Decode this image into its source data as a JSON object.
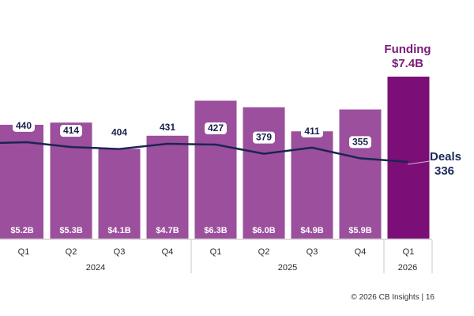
{
  "chart_data": {
    "type": "bar",
    "categories": [
      "Q1",
      "Q2",
      "Q3",
      "Q4",
      "Q1",
      "Q2",
      "Q3",
      "Q4",
      "Q1"
    ],
    "years": [
      {
        "label": "2024",
        "quarters": [
          0,
          1,
          2,
          3
        ]
      },
      {
        "label": "2025",
        "quarters": [
          4,
          5,
          6,
          7
        ]
      },
      {
        "label": "2026",
        "quarters": [
          8
        ]
      }
    ],
    "series": [
      {
        "name": "Funding",
        "unit": "$B",
        "values": [
          5.2,
          5.3,
          4.1,
          4.7,
          6.3,
          6.0,
          4.9,
          5.9,
          7.4
        ],
        "labels": [
          "$5.2B",
          "$5.3B",
          "$4.1B",
          "$4.7B",
          "$6.3B",
          "$6.0B",
          "$4.9B",
          "$5.9B",
          "$7.4B"
        ]
      },
      {
        "name": "Deals",
        "values": [
          440,
          414,
          404,
          431,
          427,
          379,
          411,
          355,
          336
        ]
      }
    ],
    "colors": {
      "bar": "#9b4f9c",
      "bar_highlight": "#7b0f77",
      "line": "#1b2552"
    },
    "callouts": {
      "funding_title": "Funding",
      "funding_value": "$7.4B",
      "deals_title": "Deals",
      "deals_value": "336"
    }
  },
  "footer": "© 2026 CB Insights  |  16"
}
